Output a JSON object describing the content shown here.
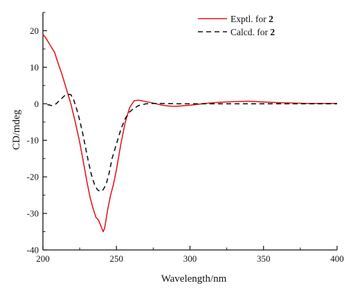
{
  "chart_data": {
    "type": "line",
    "xlabel": "Wavelength/nm",
    "ylabel": "CD/mdeg",
    "xlim": [
      200,
      400
    ],
    "ylim": [
      -40,
      25
    ],
    "x_ticks": [
      200,
      250,
      300,
      350,
      400
    ],
    "y_ticks": [
      -40,
      -30,
      -20,
      -10,
      0,
      10,
      20
    ],
    "x_tick_labels": [
      "200",
      "250",
      "300",
      "350",
      "400"
    ],
    "y_tick_labels": [
      "-40",
      "-30",
      "-20",
      "-10",
      "0",
      "10",
      "20"
    ],
    "grid": false,
    "legend_position": "top-right",
    "series": [
      {
        "name_prefix": "Exptl. for ",
        "name_bold": "2",
        "color": "#e0191c",
        "style": "solid",
        "x": [
          200,
          202,
          205,
          208,
          210,
          213,
          216,
          219,
          222,
          225,
          228,
          230,
          232,
          234,
          236,
          238,
          240,
          241,
          242,
          244,
          246,
          248,
          250,
          253,
          256,
          259,
          262,
          265,
          270,
          275,
          280,
          285,
          290,
          300,
          310,
          320,
          330,
          340,
          350,
          360,
          370,
          380,
          390,
          400
        ],
        "y": [
          19,
          18,
          16,
          14,
          11.5,
          8,
          4,
          0,
          -5,
          -10.5,
          -17,
          -21.5,
          -25.5,
          -28.5,
          -31,
          -32,
          -34,
          -35,
          -34,
          -29,
          -25,
          -22,
          -18,
          -11,
          -5,
          -1,
          0.8,
          1.0,
          0.6,
          0.2,
          -0.3,
          -0.6,
          -0.7,
          -0.4,
          0.1,
          0.4,
          0.6,
          0.7,
          0.5,
          0.3,
          0.2,
          0.1,
          0.1,
          0.1
        ]
      },
      {
        "name_prefix": "Calcd. for ",
        "name_bold": "2",
        "color": "#111111",
        "style": "dashed",
        "x": [
          203,
          206,
          209,
          212,
          215,
          217,
          219,
          221,
          223,
          225,
          227,
          229,
          231,
          233,
          235,
          237,
          239,
          241,
          243,
          245,
          247,
          250,
          253,
          256,
          259,
          262,
          265,
          270,
          275,
          280,
          290,
          300,
          320,
          340,
          360,
          380,
          400
        ],
        "y": [
          -0.2,
          -0.5,
          0,
          1.2,
          2.3,
          2.6,
          2.5,
          1,
          -1.5,
          -4.5,
          -8,
          -12,
          -16,
          -19.5,
          -22,
          -23.5,
          -24,
          -23.5,
          -22,
          -19,
          -15,
          -11,
          -7,
          -4,
          -2.2,
          -1.2,
          -0.5,
          0,
          0.1,
          0.1,
          0,
          0,
          0,
          0,
          0,
          0,
          0
        ]
      }
    ]
  }
}
